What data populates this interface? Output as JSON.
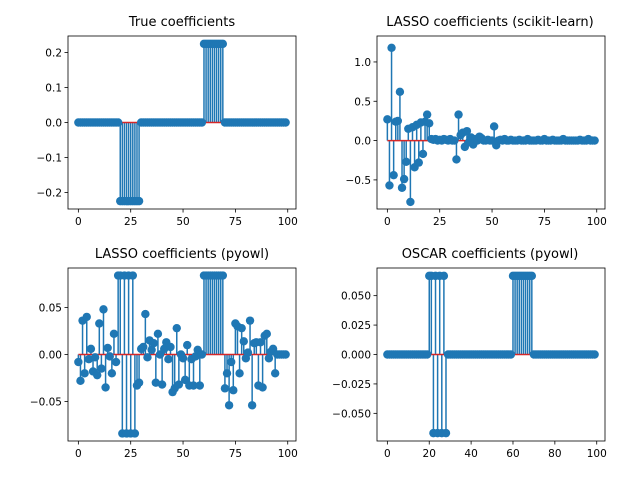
{
  "chart_data": [
    {
      "type": "stem",
      "title": "True coefficients",
      "xlim": [
        -4.95,
        103.95
      ],
      "ylim": [
        -0.2475,
        0.2475
      ],
      "xticks": [
        0,
        25,
        50,
        75,
        100
      ],
      "xtick_labels": [
        "0",
        "25",
        "50",
        "75",
        "100"
      ],
      "yticks": [
        -0.2,
        -0.1,
        0.0,
        0.1,
        0.2
      ],
      "ytick_labels": [
        "−0.2",
        "−0.1",
        "0.0",
        "0.1",
        "0.2"
      ],
      "x": [
        0,
        1,
        2,
        3,
        4,
        5,
        6,
        7,
        8,
        9,
        10,
        11,
        12,
        13,
        14,
        15,
        16,
        17,
        18,
        19,
        20,
        21,
        22,
        23,
        24,
        25,
        26,
        27,
        28,
        29,
        30,
        31,
        32,
        33,
        34,
        35,
        36,
        37,
        38,
        39,
        40,
        41,
        42,
        43,
        44,
        45,
        46,
        47,
        48,
        49,
        50,
        51,
        52,
        53,
        54,
        55,
        56,
        57,
        58,
        59,
        60,
        61,
        62,
        63,
        64,
        65,
        66,
        67,
        68,
        69,
        70,
        71,
        72,
        73,
        74,
        75,
        76,
        77,
        78,
        79,
        80,
        81,
        82,
        83,
        84,
        85,
        86,
        87,
        88,
        89,
        90,
        91,
        92,
        93,
        94,
        95,
        96,
        97,
        98,
        99
      ],
      "y": [
        0,
        0,
        0,
        0,
        0,
        0,
        0,
        0,
        0,
        0,
        0,
        0,
        0,
        0,
        0,
        0,
        0,
        0,
        0,
        0,
        -0.225,
        -0.225,
        -0.225,
        -0.225,
        -0.225,
        -0.225,
        -0.225,
        -0.225,
        -0.225,
        -0.225,
        0,
        0,
        0,
        0,
        0,
        0,
        0,
        0,
        0,
        0,
        0,
        0,
        0,
        0,
        0,
        0,
        0,
        0,
        0,
        0,
        0,
        0,
        0,
        0,
        0,
        0,
        0,
        0,
        0,
        0,
        0.225,
        0.225,
        0.225,
        0.225,
        0.225,
        0.225,
        0.225,
        0.225,
        0.225,
        0.225,
        0,
        0,
        0,
        0,
        0,
        0,
        0,
        0,
        0,
        0,
        0,
        0,
        0,
        0,
        0,
        0,
        0,
        0,
        0,
        0,
        0,
        0,
        0,
        0,
        0,
        0,
        0,
        0,
        0,
        0
      ]
    },
    {
      "type": "stem",
      "title": "LASSO coefficients (scikit-learn)",
      "xlim": [
        -4.95,
        103.95
      ],
      "ylim": [
        -0.87,
        1.33
      ],
      "xticks": [
        0,
        25,
        50,
        75,
        100
      ],
      "xtick_labels": [
        "0",
        "25",
        "50",
        "75",
        "100"
      ],
      "yticks": [
        -0.5,
        0.0,
        0.5,
        1.0
      ],
      "ytick_labels": [
        "−0.5",
        "0.0",
        "0.5",
        "1.0"
      ],
      "x": [
        0,
        1,
        2,
        3,
        4,
        5,
        6,
        7,
        8,
        9,
        10,
        11,
        12,
        13,
        14,
        15,
        16,
        17,
        18,
        19,
        20,
        21,
        22,
        23,
        24,
        25,
        26,
        27,
        28,
        29,
        30,
        31,
        32,
        33,
        34,
        35,
        36,
        37,
        38,
        39,
        40,
        41,
        42,
        43,
        44,
        45,
        46,
        47,
        48,
        49,
        50,
        51,
        52,
        53,
        54,
        55,
        56,
        57,
        58,
        59,
        60,
        61,
        62,
        63,
        64,
        65,
        66,
        67,
        68,
        69,
        70,
        71,
        72,
        73,
        74,
        75,
        76,
        77,
        78,
        79,
        80,
        81,
        82,
        83,
        84,
        85,
        86,
        87,
        88,
        89,
        90,
        91,
        92,
        93,
        94,
        95,
        96,
        97,
        98,
        99
      ],
      "y": [
        0.27,
        -0.57,
        1.18,
        -0.44,
        0.24,
        0.25,
        0.62,
        -0.6,
        -0.49,
        -0.27,
        0.15,
        -0.78,
        0.17,
        -0.34,
        0.2,
        -0.28,
        0.23,
        -0.17,
        0.24,
        0.33,
        0.22,
        0.02,
        0.01,
        0.02,
        0.0,
        0.01,
        0.0,
        0.02,
        0.01,
        0.0,
        0.02,
        0.0,
        0.0,
        -0.24,
        0.33,
        0.07,
        0.1,
        -0.08,
        0.12,
        -0.02,
        0.04,
        -0.05,
        0.02,
        0.0,
        0.05,
        0.03,
        0.0,
        0.0,
        0.01,
        0.0,
        0.0,
        0.18,
        -0.06,
        0.0,
        0.01,
        0.0,
        0.02,
        0.0,
        0.0,
        0.01,
        0.0,
        0.0,
        0.0,
        0.01,
        0.0,
        0.0,
        0.0,
        0.02,
        0.0,
        0.0,
        0.0,
        0.0,
        0.01,
        0.0,
        0.0,
        0.02,
        0.0,
        0.0,
        0.0,
        0.01,
        0.0,
        0.0,
        0.0,
        0.0,
        0.02,
        0.0,
        0.0,
        0.0,
        0.0,
        0.0,
        0.0,
        0.0,
        0.01,
        0.0,
        0.0,
        0.0,
        0.02,
        0.0,
        0.0,
        0.0
      ]
    },
    {
      "type": "stem",
      "title": "LASSO coefficients (pyowl)",
      "xlim": [
        -4.95,
        103.95
      ],
      "ylim": [
        -0.092,
        0.092
      ],
      "xticks": [
        0,
        25,
        50,
        75,
        100
      ],
      "xtick_labels": [
        "0",
        "25",
        "50",
        "75",
        "100"
      ],
      "yticks": [
        -0.05,
        0.0,
        0.05
      ],
      "ytick_labels": [
        "−0.05",
        "0.00",
        "0.05"
      ],
      "x": [
        0,
        1,
        2,
        3,
        4,
        5,
        6,
        7,
        8,
        9,
        10,
        11,
        12,
        13,
        14,
        15,
        16,
        17,
        18,
        19,
        20,
        21,
        22,
        23,
        24,
        25,
        26,
        27,
        28,
        29,
        30,
        31,
        32,
        33,
        34,
        35,
        36,
        37,
        38,
        39,
        40,
        41,
        42,
        43,
        44,
        45,
        46,
        47,
        48,
        49,
        50,
        51,
        52,
        53,
        54,
        55,
        56,
        57,
        58,
        59,
        60,
        61,
        62,
        63,
        64,
        65,
        66,
        67,
        68,
        69,
        70,
        71,
        72,
        73,
        74,
        75,
        76,
        77,
        78,
        79,
        80,
        81,
        82,
        83,
        84,
        85,
        86,
        87,
        88,
        89,
        90,
        91,
        92,
        93,
        94,
        95,
        96,
        97,
        98,
        99
      ],
      "y": [
        -0.008,
        -0.028,
        0.036,
        -0.02,
        0.04,
        -0.005,
        0.006,
        -0.018,
        -0.003,
        -0.022,
        0.033,
        -0.015,
        0.048,
        -0.035,
        0.007,
        -0.002,
        -0.02,
        0.022,
        -0.008,
        0.084,
        0.084,
        -0.084,
        0.084,
        -0.084,
        0.084,
        -0.084,
        0.084,
        -0.084,
        -0.033,
        -0.03,
        0.006,
        0.008,
        0.043,
        -0.003,
        0.015,
        0.005,
        0.012,
        -0.03,
        0.022,
        0.0,
        -0.032,
        0.006,
        0.013,
        -0.005,
        0.008,
        -0.04,
        -0.036,
        0.028,
        -0.032,
        0.0,
        -0.004,
        -0.027,
        0.01,
        -0.033,
        -0.005,
        -0.033,
        -0.002,
        0.005,
        -0.033,
        0.0,
        0.084,
        0.084,
        0.084,
        0.084,
        0.084,
        0.084,
        0.084,
        0.084,
        0.084,
        0.084,
        -0.036,
        -0.02,
        -0.054,
        -0.008,
        -0.038,
        0.033,
        0.03,
        -0.02,
        0.028,
        0.014,
        -0.004,
        0.002,
        0.036,
        -0.054,
        0.012,
        0.013,
        -0.033,
        0.013,
        -0.035,
        0.02,
        0.022,
        -0.004,
        0.003,
        0.006,
        -0.02,
        0.0,
        0.0,
        0.0,
        0.0,
        0.0
      ]
    },
    {
      "type": "stem",
      "title": "OSCAR coefficients (pyowl)",
      "xlim": [
        -4.95,
        103.95
      ],
      "ylim": [
        -0.0735,
        0.0735
      ],
      "xticks": [
        0,
        20,
        40,
        60,
        80,
        100
      ],
      "xtick_labels": [
        "0",
        "20",
        "40",
        "60",
        "80",
        "100"
      ],
      "yticks": [
        -0.05,
        -0.025,
        0.0,
        0.025,
        0.05
      ],
      "ytick_labels": [
        "−0.050",
        "−0.025",
        "0.000",
        "0.025",
        "0.050"
      ],
      "x": [
        0,
        1,
        2,
        3,
        4,
        5,
        6,
        7,
        8,
        9,
        10,
        11,
        12,
        13,
        14,
        15,
        16,
        17,
        18,
        19,
        20,
        21,
        22,
        23,
        24,
        25,
        26,
        27,
        28,
        29,
        30,
        31,
        32,
        33,
        34,
        35,
        36,
        37,
        38,
        39,
        40,
        41,
        42,
        43,
        44,
        45,
        46,
        47,
        48,
        49,
        50,
        51,
        52,
        53,
        54,
        55,
        56,
        57,
        58,
        59,
        60,
        61,
        62,
        63,
        64,
        65,
        66,
        67,
        68,
        69,
        70,
        71,
        72,
        73,
        74,
        75,
        76,
        77,
        78,
        79,
        80,
        81,
        82,
        83,
        84,
        85,
        86,
        87,
        88,
        89,
        90,
        91,
        92,
        93,
        94,
        95,
        96,
        97,
        98,
        99
      ],
      "y": [
        0,
        0,
        0,
        0,
        0,
        0,
        0,
        0,
        0,
        0,
        0,
        0,
        0,
        0,
        0,
        0,
        0,
        0,
        0,
        0,
        0.0668,
        0.0668,
        -0.0668,
        0.0668,
        -0.0668,
        0.0668,
        -0.0668,
        0.0668,
        -0.0668,
        0,
        0,
        0,
        0,
        0,
        0,
        0,
        0,
        0,
        0,
        0,
        0,
        0,
        0,
        0,
        0,
        0,
        0,
        0,
        0,
        0,
        0,
        0,
        0,
        0,
        0,
        0,
        0,
        0,
        0,
        0,
        0.0668,
        0.0668,
        0.0668,
        0.0668,
        0.0668,
        0.0668,
        0.0668,
        0.0668,
        0.0668,
        0.0668,
        0,
        0,
        0,
        0,
        0,
        0,
        0,
        0,
        0,
        0,
        0,
        0,
        0,
        0,
        0,
        0,
        0,
        0,
        0,
        0,
        0,
        0,
        0,
        0,
        0,
        0,
        0,
        0,
        0,
        0
      ]
    }
  ],
  "colors": {
    "stem": "#1f77b4",
    "baseline": "#d62728",
    "axes": "#000000",
    "background": "#ffffff"
  }
}
